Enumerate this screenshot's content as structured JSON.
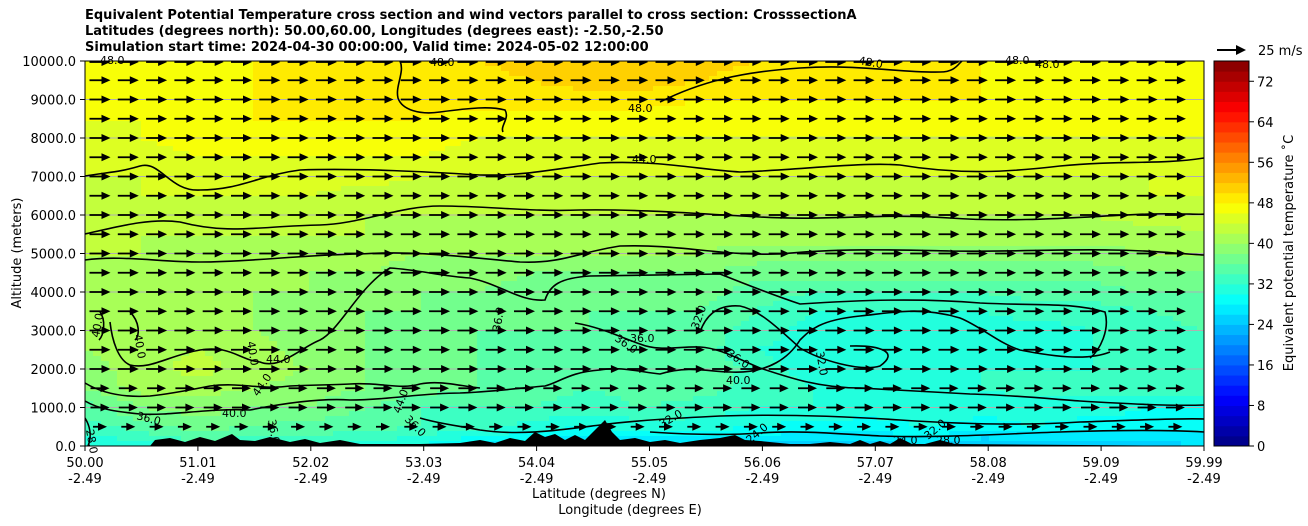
{
  "chart_data": {
    "type": "heatmap",
    "title_lines": [
      "Equivalent Potential Temperature cross section and wind vectors parallel to cross section: CrosssectionA",
      "Latitudes (degrees north): 50.00,60.00, Longitudes (degrees east): -2.50,-2.50",
      "Simulation start time: 2024-04-30 00:00:00, Valid time: 2024-05-02 12:00:00"
    ],
    "ylabel": "Altitude (meters)",
    "xlabel_line1": "Latitude (degrees N)",
    "xlabel_line2": "Longitude (degrees E)",
    "ylim": [
      0,
      10000
    ],
    "yticks": [
      "0.0",
      "1000.0",
      "2000.0",
      "3000.0",
      "4000.0",
      "5000.0",
      "6000.0",
      "7000.0",
      "8000.0",
      "9000.0",
      "10000.0"
    ],
    "xticks_lat": [
      "50.00",
      "51.01",
      "52.02",
      "53.03",
      "54.04",
      "55.05",
      "56.06",
      "57.07",
      "58.08",
      "59.09",
      "59.99"
    ],
    "xticks_lon": [
      "-2.49",
      "-2.49",
      "-2.49",
      "-2.49",
      "-2.49",
      "-2.49",
      "-2.49",
      "-2.49",
      "-2.49",
      "-2.49",
      "-2.49"
    ],
    "colorbar": {
      "label": "Equivalent potential temperature ˚C",
      "range": [
        0,
        76
      ],
      "ticks": [
        "0",
        "8",
        "16",
        "24",
        "32",
        "40",
        "48",
        "56",
        "64",
        "72"
      ],
      "colormap": "jet"
    },
    "quiver_key": "25 m/s",
    "grid": "horizontal",
    "contour_labels": [
      "48.0",
      "44.0",
      "40.0",
      "36.0",
      "32.0",
      "28.0",
      "24.0"
    ],
    "field_rows": [
      {
        "altitude": 0,
        "values": [
          30,
          31,
          33,
          32,
          33,
          31,
          30,
          27,
          26,
          26,
          26,
          26,
          25,
          25,
          25,
          26,
          24,
          24,
          25,
          25,
          26
        ]
      },
      {
        "altitude": 500,
        "values": [
          33,
          35,
          37,
          36,
          35,
          35,
          34,
          33,
          31,
          30,
          31,
          31,
          30,
          29,
          29,
          30,
          29,
          30,
          29,
          29,
          29
        ]
      },
      {
        "altitude": 1000,
        "values": [
          35,
          38,
          39,
          38,
          38,
          36,
          34,
          34,
          34,
          33,
          34,
          33,
          32,
          32,
          31,
          32,
          31,
          31,
          31,
          30,
          30
        ]
      },
      {
        "altitude": 1500,
        "values": [
          38,
          41,
          41,
          40,
          39,
          38,
          37,
          36,
          35,
          34,
          35,
          35,
          33,
          32,
          31,
          32,
          32,
          33,
          33,
          33,
          33
        ]
      },
      {
        "altitude": 2000,
        "values": [
          39,
          41,
          43,
          41,
          40,
          38,
          37,
          36,
          35,
          35,
          35,
          36,
          33,
          31,
          30,
          31,
          32,
          32,
          32,
          33,
          33
        ]
      },
      {
        "altitude": 2500,
        "values": [
          40,
          41,
          42,
          41,
          39,
          38,
          37,
          36,
          35,
          35,
          35,
          35,
          32,
          31,
          30,
          31,
          31,
          31,
          32,
          33,
          33
        ]
      },
      {
        "altitude": 3000,
        "values": [
          40,
          41,
          41,
          40,
          39,
          38,
          37,
          36,
          36,
          36,
          35,
          35,
          33,
          31,
          30,
          30,
          31,
          31,
          32,
          33,
          34
        ]
      },
      {
        "altitude": 3500,
        "values": [
          41,
          41,
          40,
          40,
          39,
          38,
          38,
          37,
          36,
          36,
          36,
          36,
          34,
          32,
          32,
          32,
          32,
          33,
          33,
          34,
          35
        ]
      },
      {
        "altitude": 4000,
        "values": [
          41,
          41,
          40,
          40,
          40,
          39,
          38,
          38,
          37,
          37,
          37,
          37,
          35,
          34,
          34,
          34,
          34,
          35,
          35,
          36,
          36
        ]
      },
      {
        "altitude": 4500,
        "values": [
          41,
          41,
          41,
          40,
          40,
          40,
          39,
          39,
          38,
          38,
          38,
          38,
          37,
          37,
          37,
          37,
          37,
          37,
          37,
          38,
          38
        ]
      },
      {
        "altitude": 5000,
        "values": [
          42,
          42,
          41,
          41,
          41,
          41,
          40,
          40,
          40,
          40,
          40,
          40,
          39,
          39,
          39,
          39,
          39,
          39,
          39,
          40,
          40
        ]
      },
      {
        "altitude": 5500,
        "values": [
          42,
          42,
          42,
          42,
          42,
          42,
          41,
          41,
          41,
          41,
          41,
          41,
          41,
          41,
          41,
          41,
          41,
          41,
          41,
          41,
          42
        ]
      },
      {
        "altitude": 6000,
        "values": [
          43,
          43,
          43,
          43,
          43,
          42,
          42,
          42,
          42,
          42,
          42,
          42,
          42,
          42,
          42,
          42,
          42,
          42,
          42,
          43,
          43
        ]
      },
      {
        "altitude": 6500,
        "values": [
          43,
          44,
          44,
          44,
          44,
          43,
          43,
          43,
          43,
          43,
          43,
          43,
          43,
          43,
          43,
          43,
          43,
          43,
          43,
          44,
          44
        ]
      },
      {
        "altitude": 7000,
        "values": [
          44,
          44,
          45,
          45,
          45,
          45,
          44,
          44,
          44,
          44,
          44,
          44,
          44,
          44,
          44,
          44,
          44,
          44,
          44,
          44,
          45
        ]
      },
      {
        "altitude": 7500,
        "values": [
          45,
          45,
          46,
          46,
          46,
          46,
          46,
          45,
          45,
          45,
          45,
          45,
          45,
          45,
          45,
          45,
          45,
          45,
          45,
          45,
          45
        ]
      },
      {
        "altitude": 8000,
        "values": [
          45,
          46,
          47,
          47,
          47,
          47,
          47,
          46,
          46,
          46,
          46,
          46,
          46,
          46,
          46,
          46,
          46,
          46,
          46,
          46,
          46
        ]
      },
      {
        "altitude": 8500,
        "values": [
          46,
          46,
          47,
          48,
          48,
          48,
          48,
          47,
          47,
          47,
          47,
          47,
          47,
          47,
          47,
          47,
          47,
          47,
          47,
          47,
          47
        ]
      },
      {
        "altitude": 9000,
        "values": [
          46,
          47,
          47,
          48,
          48,
          48,
          49,
          49,
          49,
          49,
          49,
          48,
          48,
          48,
          48,
          48,
          48,
          47,
          47,
          47,
          47
        ]
      },
      {
        "altitude": 9500,
        "values": [
          47,
          47,
          47,
          48,
          48,
          49,
          49,
          49,
          50,
          51,
          51,
          50,
          49,
          48,
          48,
          48,
          48,
          47,
          47,
          47,
          47
        ]
      },
      {
        "altitude": 10000,
        "values": [
          47,
          47,
          47,
          48,
          48,
          49,
          49,
          50,
          51,
          52,
          52,
          51,
          50,
          49,
          48,
          48,
          48,
          48,
          48,
          48,
          48
        ]
      }
    ]
  }
}
